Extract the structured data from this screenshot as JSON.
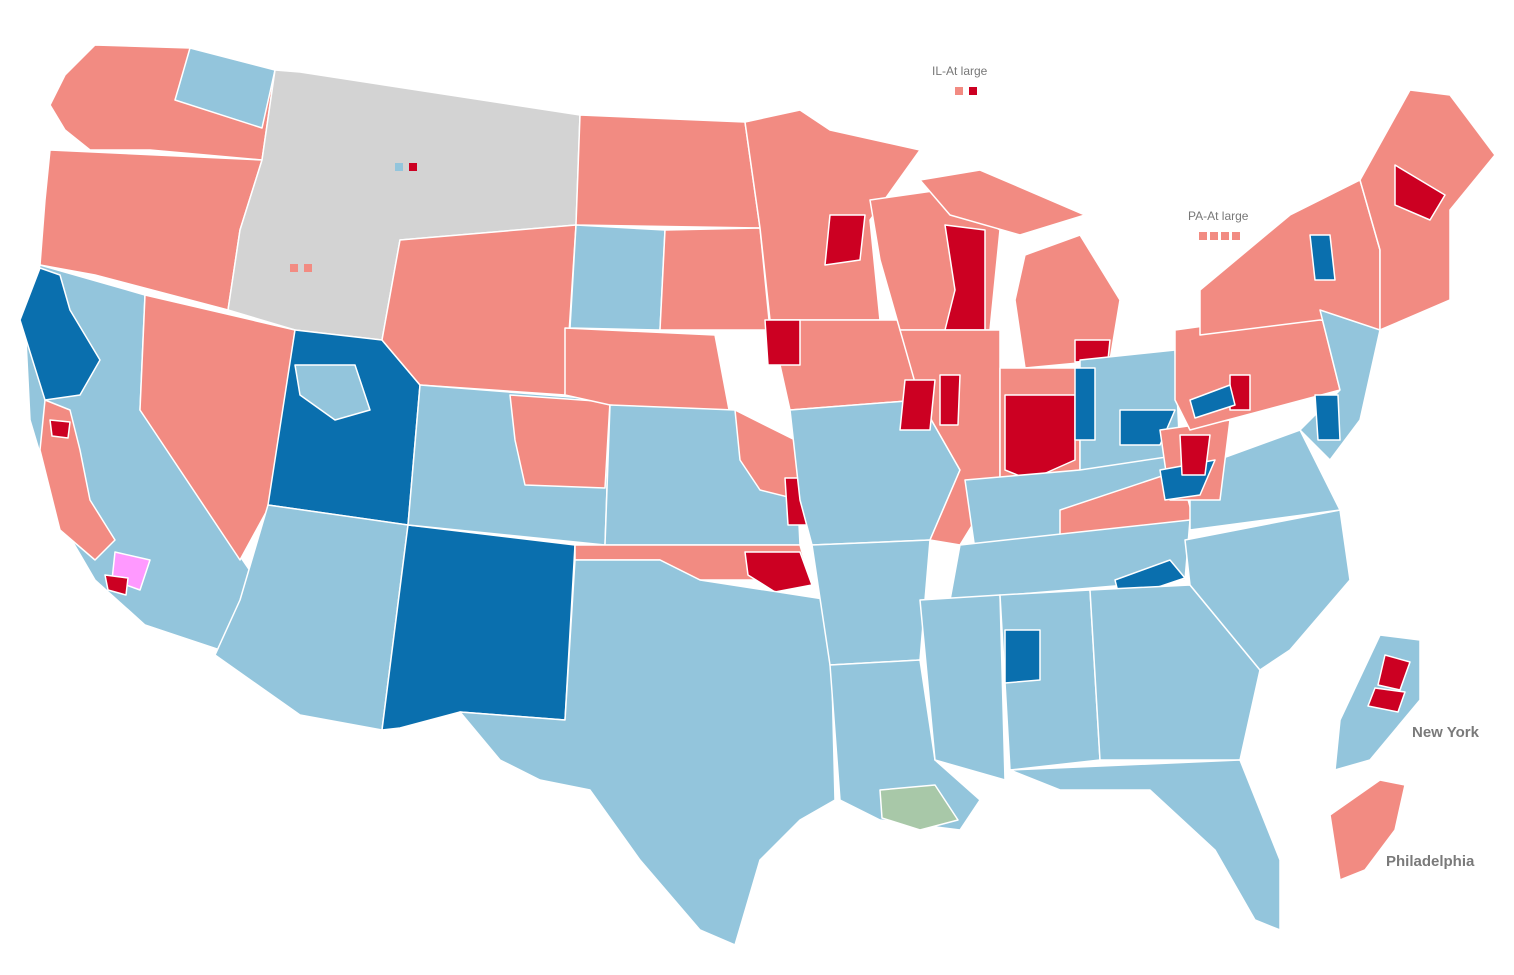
{
  "map": {
    "colors": {
      "dem_strong": "#cc0022",
      "dem_light": "#f28b82",
      "rep_strong": "#0a6fae",
      "rep_light": "#93c5dc",
      "no_election": "#d3d3d3",
      "third_party": "#ff99ff",
      "other": "#a8c8a8"
    },
    "labels": {
      "il_at_large": "IL-At large",
      "pa_at_large": "PA-At large",
      "new_york": "New York",
      "philadelphia": "Philadelphia"
    },
    "at_large_markers": {
      "montana": [
        "rep_light",
        "dem_strong"
      ],
      "idaho": [
        "dem_light",
        "dem_light"
      ],
      "illinois": [
        "dem_light",
        "dem_strong"
      ],
      "pennsylvania": [
        "dem_light",
        "dem_light",
        "dem_light",
        "dem_light"
      ]
    }
  }
}
